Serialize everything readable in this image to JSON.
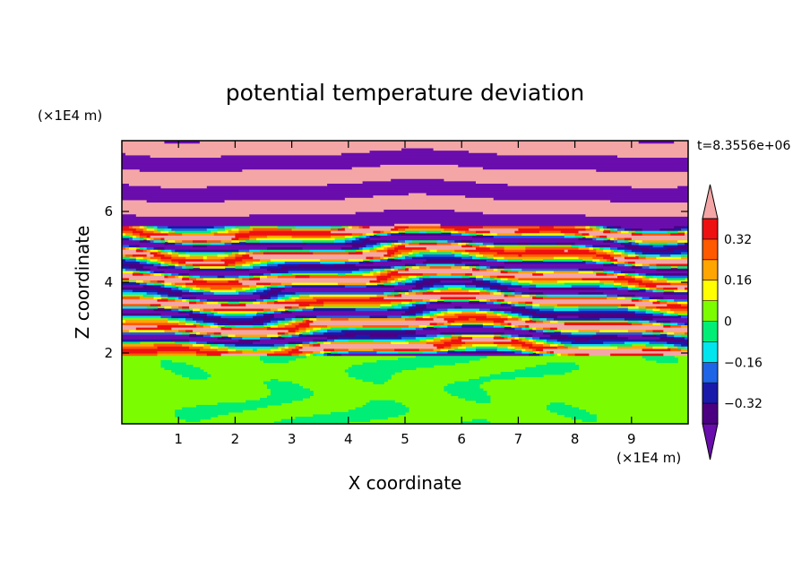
{
  "chart_data": {
    "type": "heatmap",
    "title": "potential temperature deviation",
    "xlabel": "X coordinate",
    "ylabel": "Z coordinate",
    "x_unit": "(×1E4 m)",
    "y_unit": "(×1E4 m)",
    "time_label": "t=8.3556e+06",
    "xlim": [
      0,
      10
    ],
    "ylim": [
      0,
      8
    ],
    "x_ticks": [
      {
        "value": 1,
        "label": "1"
      },
      {
        "value": 2,
        "label": "2"
      },
      {
        "value": 3,
        "label": "3"
      },
      {
        "value": 4,
        "label": "4"
      },
      {
        "value": 5,
        "label": "5"
      },
      {
        "value": 6,
        "label": "6"
      },
      {
        "value": 7,
        "label": "7"
      },
      {
        "value": 8,
        "label": "8"
      },
      {
        "value": 9,
        "label": "9"
      }
    ],
    "y_ticks": [
      {
        "value": 2,
        "label": "2"
      },
      {
        "value": 4,
        "label": "4"
      },
      {
        "value": 6,
        "label": "6"
      }
    ],
    "colorbar": {
      "levels": [
        -0.4,
        -0.32,
        -0.24,
        -0.16,
        -0.08,
        0,
        0.08,
        0.16,
        0.24,
        0.32,
        0.4
      ],
      "colors": [
        "#4b0082",
        "#1a1aaa",
        "#1e64e6",
        "#00e5ee",
        "#00ee76",
        "#7cfc00",
        "#ffff00",
        "#ffa500",
        "#ff5a00",
        "#ee1111"
      ],
      "under_color": "#6a0dad",
      "over_color": "#f4a6a6",
      "tick_labels": [
        {
          "value": 0.32,
          "label": "0.32"
        },
        {
          "value": 0.16,
          "label": "0.16"
        },
        {
          "value": 0,
          "label": "0"
        },
        {
          "value": -0.16,
          "label": "−0.16"
        },
        {
          "value": -0.32,
          "label": "−0.32"
        }
      ]
    },
    "field_description_bands": [
      {
        "z_range": [
          0,
          2
        ],
        "regime": "near-zero (green/light-green swirls)"
      },
      {
        "z_range": [
          2,
          5.5
        ],
        "regime": "mixed turbulent layers, all levels"
      },
      {
        "z_range": [
          5.5,
          8
        ],
        "regime": "alternating saturated layers (pink over / purple under)"
      }
    ]
  }
}
